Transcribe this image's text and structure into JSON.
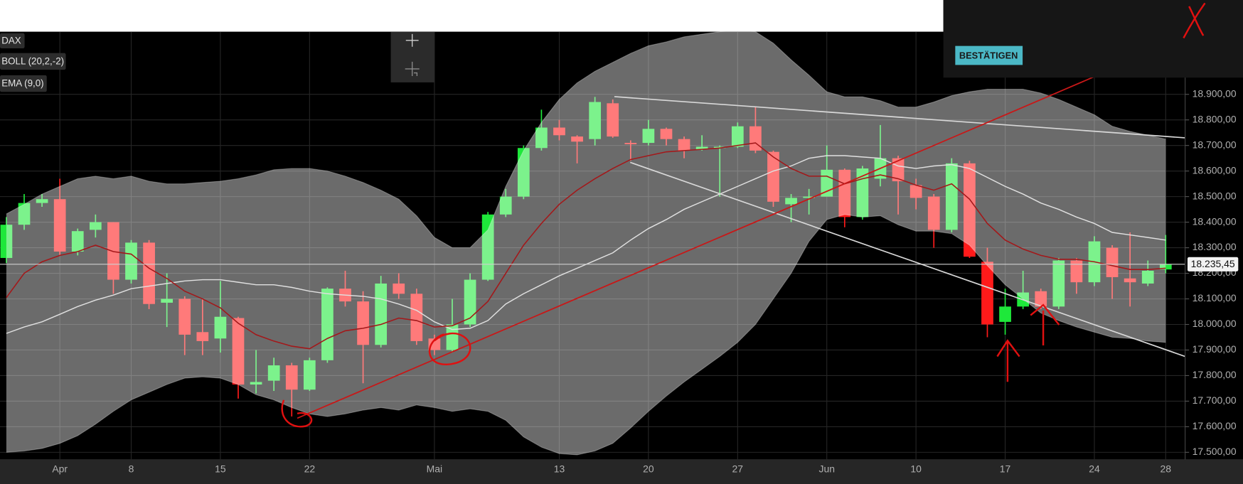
{
  "chart_data": {
    "type": "candlestick",
    "name": "DAX",
    "categories": [
      null,
      null,
      null,
      "Apr",
      null,
      null,
      null,
      "8",
      null,
      null,
      null,
      null,
      "15",
      null,
      null,
      null,
      null,
      "22",
      null,
      null,
      null,
      null,
      null,
      null,
      "Mai",
      null,
      null,
      null,
      null,
      null,
      null,
      "13",
      null,
      null,
      null,
      null,
      "20",
      null,
      null,
      null,
      null,
      "27",
      null,
      null,
      null,
      null,
      "Jun",
      null,
      null,
      null,
      null,
      "10",
      null,
      null,
      null,
      null,
      "17",
      null,
      null,
      null,
      null,
      "24",
      null,
      null,
      null,
      "28"
    ],
    "open": [
      18260,
      18390,
      18475,
      18490,
      18285,
      18370,
      18400,
      18175,
      18320,
      18085,
      18100,
      17970,
      17945,
      18025,
      17765,
      17780,
      17840,
      17745,
      17860,
      18140,
      18090,
      17920,
      18160,
      18120,
      17945,
      17900,
      18000,
      18175,
      18430,
      18500,
      18690,
      18770,
      18735,
      18725,
      18865,
      18710,
      18710,
      18765,
      18725,
      18685,
      18690,
      18695,
      18775,
      18675,
      18470,
      18495,
      18500,
      18605,
      18420,
      18570,
      18650,
      18545,
      18500,
      18370,
      18630,
      18245,
      18010,
      18070,
      18130,
      18070,
      18250,
      18165,
      18300,
      18180,
      18160,
      18215
    ],
    "high": [
      18420,
      18510,
      18510,
      18570,
      18375,
      18430,
      18400,
      18330,
      18330,
      18200,
      18110,
      18100,
      18170,
      18030,
      17900,
      17870,
      17850,
      17870,
      18145,
      18210,
      18130,
      18190,
      18200,
      18140,
      17960,
      18100,
      18200,
      18440,
      18530,
      18700,
      18840,
      18800,
      18740,
      18890,
      18880,
      18720,
      18800,
      18770,
      18735,
      18740,
      18700,
      18790,
      18850,
      18680,
      18510,
      18530,
      18700,
      18610,
      18620,
      18780,
      18660,
      18570,
      18510,
      18650,
      18640,
      18300,
      18140,
      18210,
      18140,
      18260,
      18260,
      18345,
      18310,
      18360,
      18250,
      18350
    ],
    "low": [
      18240,
      18370,
      18460,
      18270,
      18270,
      18340,
      18120,
      18160,
      18060,
      17990,
      17880,
      17880,
      17890,
      17710,
      17730,
      17740,
      17640,
      17740,
      17850,
      18070,
      17770,
      17910,
      18100,
      17920,
      17880,
      17890,
      17990,
      18170,
      18420,
      18490,
      18680,
      18720,
      18630,
      18700,
      18730,
      18640,
      18700,
      18700,
      18650,
      18680,
      18500,
      18690,
      18670,
      18460,
      18400,
      18430,
      18500,
      18380,
      18410,
      18540,
      18430,
      18450,
      18300,
      18360,
      18260,
      17950,
      17960,
      18060,
      18060,
      18060,
      18120,
      18150,
      18100,
      18070,
      18150,
      18200
    ],
    "close": [
      18390,
      18475,
      18490,
      18285,
      18365,
      18400,
      18175,
      18320,
      18080,
      18100,
      17960,
      17935,
      18030,
      17765,
      17775,
      17840,
      17745,
      17860,
      18140,
      18090,
      17920,
      18160,
      18120,
      17935,
      17900,
      18000,
      18175,
      18430,
      18500,
      18690,
      18770,
      18740,
      18715,
      18870,
      18735,
      18705,
      18765,
      18725,
      18680,
      18695,
      18695,
      18775,
      18680,
      18480,
      18495,
      18500,
      18605,
      18420,
      18610,
      18650,
      18560,
      18495,
      18370,
      18630,
      18265,
      18000,
      18070,
      18125,
      18070,
      18250,
      18165,
      18325,
      18185,
      18165,
      18210,
      18235
    ],
    "up_color": "#1ee83a",
    "down_color": "#ff1a1a",
    "overlays": [
      {
        "name": "BOLL (20,2,-2)",
        "band_color": "#ffffff",
        "line_color": "#e0e0e0",
        "upper": [
          18432,
          18470,
          18510,
          18540,
          18570,
          18580,
          18570,
          18580,
          18560,
          18550,
          18550,
          18555,
          18560,
          18570,
          18585,
          18605,
          18610,
          18610,
          18600,
          18580,
          18555,
          18525,
          18490,
          18425,
          18340,
          18300,
          18300,
          18370,
          18540,
          18680,
          18790,
          18880,
          18945,
          18990,
          19025,
          19060,
          19090,
          19105,
          19125,
          19135,
          19145,
          19150,
          19145,
          19100,
          19035,
          18975,
          18910,
          18890,
          18890,
          18875,
          18850,
          18850,
          18870,
          18895,
          18910,
          18920,
          18920,
          18920,
          18905,
          18880,
          18850,
          18820,
          18775,
          18755,
          18740,
          18725
        ],
        "middle": [
          17965,
          17990,
          18010,
          18040,
          18070,
          18095,
          18115,
          18140,
          18150,
          18160,
          18170,
          18175,
          18175,
          18165,
          18155,
          18155,
          18145,
          18130,
          18120,
          18115,
          18110,
          18100,
          18080,
          18055,
          18010,
          17980,
          17985,
          18015,
          18080,
          18120,
          18155,
          18190,
          18220,
          18250,
          18280,
          18330,
          18375,
          18410,
          18450,
          18480,
          18510,
          18540,
          18570,
          18600,
          18620,
          18650,
          18660,
          18660,
          18655,
          18650,
          18620,
          18610,
          18620,
          18625,
          18610,
          18575,
          18540,
          18510,
          18475,
          18450,
          18420,
          18395,
          18360,
          18350,
          18340,
          18330
        ],
        "lower": [
          17500,
          17505,
          17515,
          17535,
          17565,
          17610,
          17660,
          17705,
          17735,
          17765,
          17790,
          17795,
          17790,
          17765,
          17725,
          17705,
          17675,
          17650,
          17640,
          17650,
          17665,
          17675,
          17665,
          17685,
          17675,
          17660,
          17670,
          17660,
          17625,
          17560,
          17520,
          17495,
          17490,
          17505,
          17535,
          17595,
          17660,
          17720,
          17775,
          17825,
          17875,
          17930,
          18000,
          18100,
          18200,
          18325,
          18410,
          18430,
          18420,
          18425,
          18390,
          18365,
          18365,
          18355,
          18310,
          18230,
          18155,
          18100,
          18045,
          18015,
          17990,
          17970,
          17950,
          17945,
          17935,
          17930
        ]
      },
      {
        "name": "EMA (9,0)",
        "color": "#a3181a",
        "values": [
          18105,
          18200,
          18245,
          18270,
          18285,
          18310,
          18285,
          18275,
          18220,
          18180,
          18130,
          18100,
          18065,
          18005,
          17960,
          17935,
          17915,
          17905,
          17945,
          17975,
          17985,
          18000,
          18025,
          18015,
          17990,
          17995,
          18025,
          18090,
          18200,
          18310,
          18395,
          18470,
          18525,
          18570,
          18610,
          18645,
          18660,
          18675,
          18680,
          18685,
          18690,
          18700,
          18710,
          18655,
          18610,
          18580,
          18580,
          18550,
          18570,
          18585,
          18570,
          18545,
          18525,
          18550,
          18490,
          18395,
          18330,
          18295,
          18270,
          18255,
          18255,
          18245,
          18230,
          18215,
          18215,
          18220
        ]
      }
    ],
    "ylim": [
      17472,
      19145
    ],
    "yticks": [
      {
        "value": 17500,
        "label": "17.500,00"
      },
      {
        "value": 17600,
        "label": "17.600,00"
      },
      {
        "value": 17700,
        "label": "17.700,00"
      },
      {
        "value": 17800,
        "label": "17.800,00"
      },
      {
        "value": 17900,
        "label": "17.900,00"
      },
      {
        "value": 18000,
        "label": "18.000,00"
      },
      {
        "value": 18100,
        "label": "18.100,00"
      },
      {
        "value": 18200,
        "label": "18.200,00"
      },
      {
        "value": 18300,
        "label": "18.300,00"
      },
      {
        "value": 18400,
        "label": "18.400,00"
      },
      {
        "value": 18500,
        "label": "18.500,00"
      },
      {
        "value": 18600,
        "label": "18.600,00"
      },
      {
        "value": 18700,
        "label": "18.700,00"
      },
      {
        "value": 18800,
        "label": "18.800,00"
      },
      {
        "value": 18900,
        "label": "18.900,00"
      }
    ],
    "last_price": {
      "value": 18235.45,
      "label": "18.235,45"
    },
    "grid": true
  },
  "banner": {
    "button": "BESTÄTIGEN"
  }
}
